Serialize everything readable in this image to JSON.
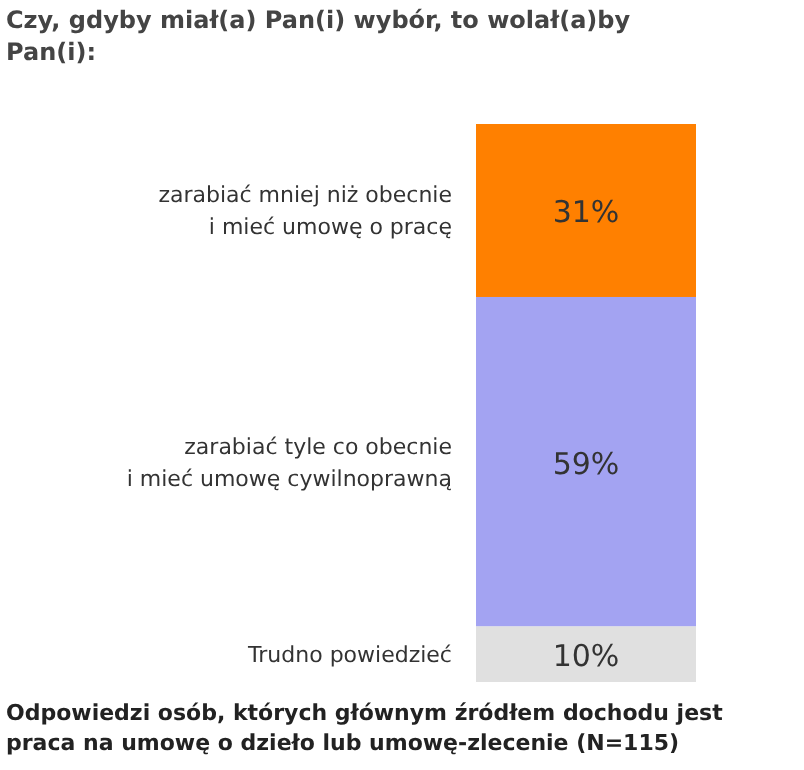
{
  "chart_data": {
    "type": "bar",
    "title": "Czy, gdyby miał(a) Pan(i) wybór, to wolał(a)by Pan(i):",
    "categories": [
      null
    ],
    "stacked": true,
    "series": [
      {
        "name": "Trudno  powiedzieć",
        "color": "#e0e0e0",
        "values": [
          10
        ],
        "value_labels": [
          "10%"
        ]
      },
      {
        "name": "zarabiać tyle co obecnie\ni mieć umowę cywilnoprawną",
        "color": "#a3a3f2",
        "values": [
          59
        ],
        "value_labels": [
          "59%"
        ]
      },
      {
        "name": "zarabiać mniej niż obecnie\ni mieć umowę o pracę",
        "color": "#ff8000",
        "values": [
          31
        ],
        "value_labels": [
          "31%"
        ]
      }
    ],
    "annotations": [
      "Odpowiedzi osób, których głównym źródłem dochodu jest praca na umowę o dzieło lub umowę-zlecenie (N=115)"
    ]
  }
}
